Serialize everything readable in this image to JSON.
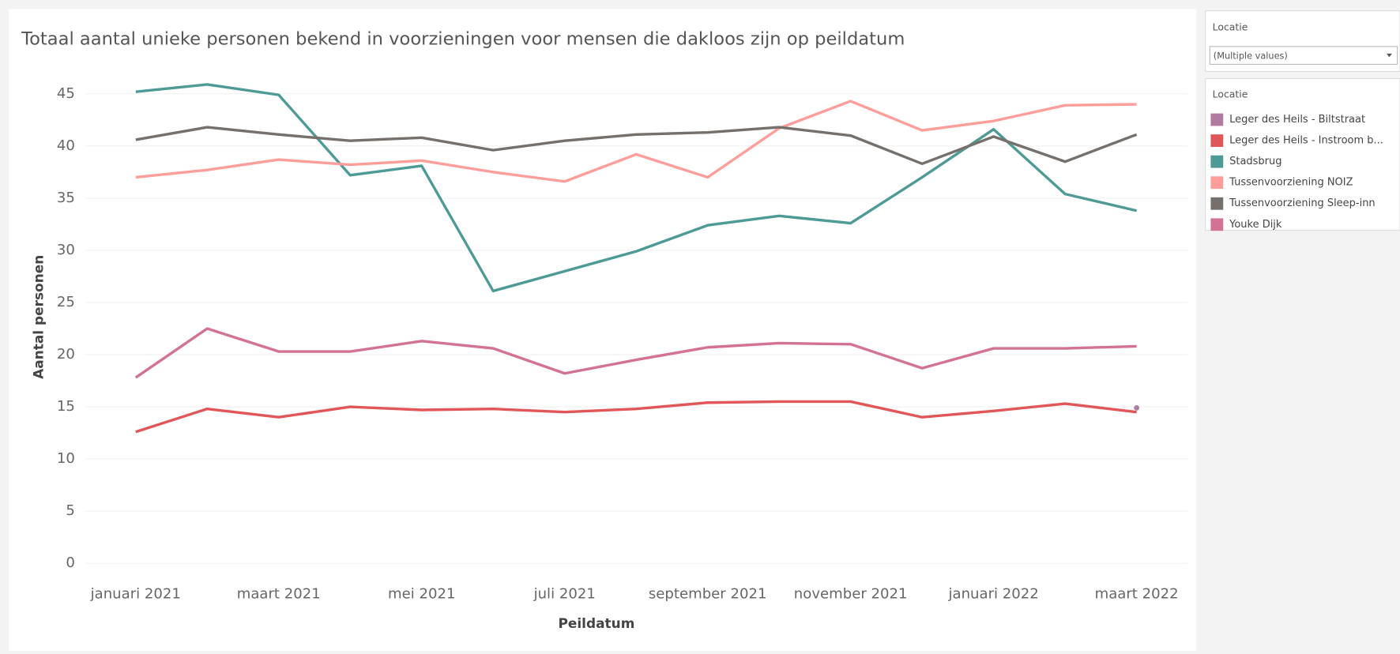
{
  "chart_data": {
    "type": "line",
    "title": "Totaal aantal unieke personen bekend in voorzieningen voor mensen die dakloos zijn op peildatum",
    "x_label": "Peildatum",
    "y_label": "Aantal personen",
    "categories": [
      "januari 2021",
      null,
      "maart 2021",
      null,
      "mei 2021",
      null,
      "juli 2021",
      null,
      "september 2021",
      null,
      "november 2021",
      null,
      "januari 2022",
      null,
      "maart 2022"
    ],
    "ylim": [
      -1.2,
      48
    ],
    "yticks": [
      0,
      5,
      10,
      15,
      20,
      25,
      30,
      35,
      40,
      45
    ],
    "grid": true,
    "filter": {
      "title": "Locatie",
      "value": "(Multiple values)"
    },
    "legend_title": "Locatie",
    "series": [
      {
        "name": "Leger des Heils - Biltstraat",
        "color": "#b07aa1",
        "values": [
          null,
          null,
          null,
          null,
          null,
          null,
          null,
          null,
          null,
          null,
          null,
          null,
          null,
          null,
          14.9
        ]
      },
      {
        "name": "Leger des Heils - Instroom b...",
        "color": "#e15759",
        "values": [
          12.6,
          14.8,
          14.0,
          15.0,
          14.7,
          14.8,
          14.5,
          14.8,
          15.4,
          15.5,
          15.5,
          14.0,
          14.6,
          15.3,
          14.5
        ]
      },
      {
        "name": "Stadsbrug",
        "color": "#4e9a96",
        "values": [
          45.2,
          45.9,
          44.9,
          37.2,
          38.1,
          26.1,
          28.0,
          29.9,
          32.4,
          33.3,
          32.6,
          37.0,
          41.6,
          35.4,
          33.8
        ]
      },
      {
        "name": "Tussenvoorziening NOIZ",
        "color": "#ff9d9a",
        "values": [
          37.0,
          37.7,
          38.7,
          38.2,
          38.6,
          37.5,
          36.6,
          39.2,
          37.0,
          41.7,
          44.3,
          41.5,
          42.4,
          43.9,
          44.0
        ]
      },
      {
        "name": "Tussenvoorziening Sleep-inn",
        "color": "#76706c",
        "values": [
          40.6,
          41.8,
          41.1,
          40.5,
          40.8,
          39.6,
          40.5,
          41.1,
          41.3,
          41.8,
          41.0,
          38.3,
          40.9,
          38.5,
          41.1
        ]
      },
      {
        "name": "Youke Dijk",
        "color": "#d37295",
        "values": [
          17.8,
          22.5,
          20.3,
          20.3,
          21.3,
          20.6,
          18.2,
          19.5,
          20.7,
          21.1,
          21.0,
          18.7,
          20.6,
          20.6,
          20.8
        ]
      }
    ]
  }
}
